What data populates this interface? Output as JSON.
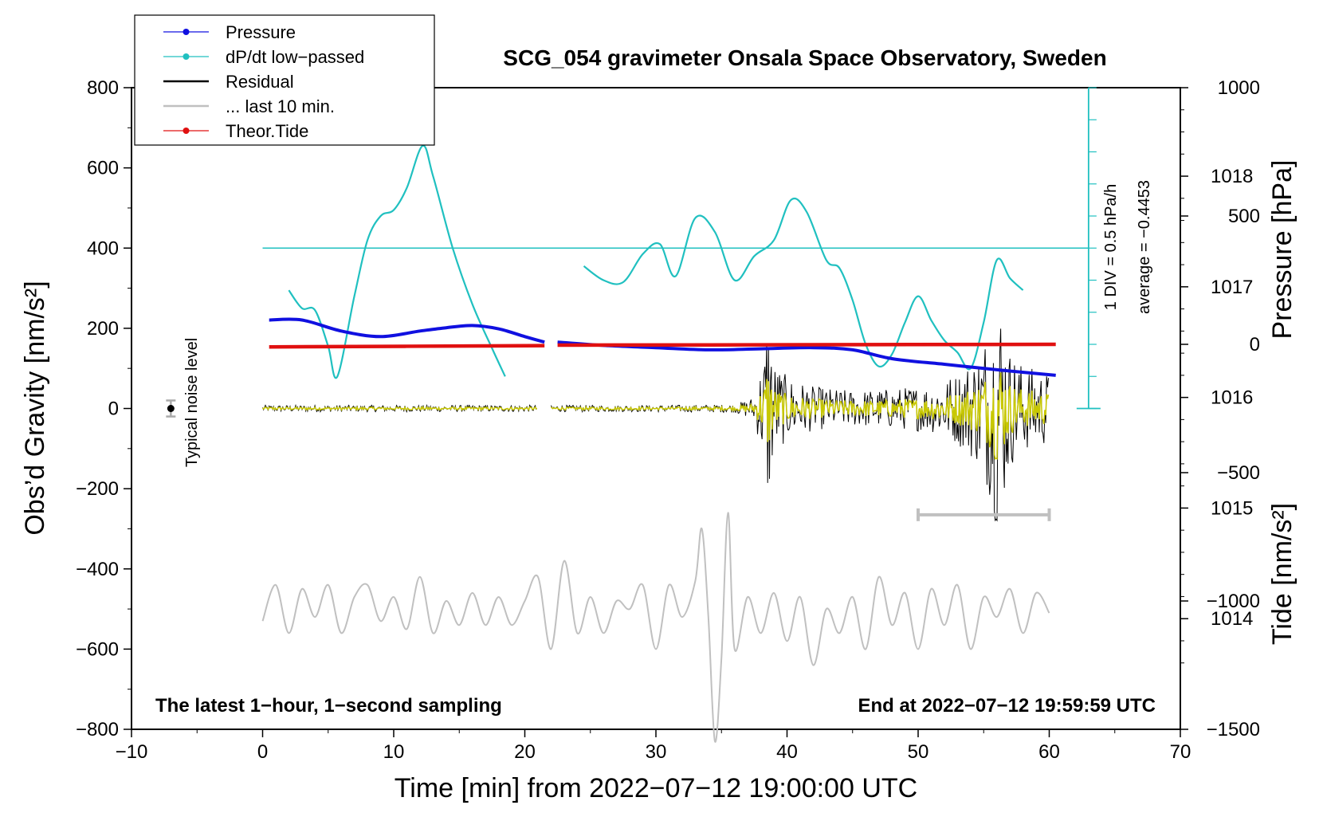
{
  "chart_data": {
    "type": "line",
    "title": "SCG_054 gravimeter Onsala Space Observatory, Sweden",
    "xlabel": "Time [min] from 2022−07−12 19:00:00 UTC",
    "ylabel_left": "Obs’d Gravity [nm/s²]",
    "ylabel_right_top": "Pressure [hPa]",
    "ylabel_right_bottom": "Tide [nm/s²]",
    "xlim": [
      -10,
      70
    ],
    "ylim_left": [
      -800,
      800
    ],
    "ylim_pressure": [
      1013,
      1018.8
    ],
    "ylim_tide": [
      -1500,
      1000
    ],
    "x_ticks": [
      "−10",
      "0",
      "10",
      "20",
      "30",
      "40",
      "50",
      "60",
      "70"
    ],
    "x_tick_values": [
      -10,
      0,
      10,
      20,
      30,
      40,
      50,
      60,
      70
    ],
    "y_ticks_left": [
      "800",
      "600",
      "400",
      "200",
      "0",
      "−200",
      "−400",
      "−600",
      "−800"
    ],
    "y_tick_values_left": [
      800,
      600,
      400,
      200,
      0,
      -200,
      -400,
      -600,
      -800
    ],
    "pressure_ticks": [
      "1018",
      "1017",
      "1016",
      "1015",
      "1014"
    ],
    "pressure_tick_values": [
      1018,
      1017,
      1016,
      1015,
      1014
    ],
    "tide_ticks": [
      "1000",
      "500",
      "0",
      "−500",
      "−1000",
      "−1500"
    ],
    "tide_tick_values": [
      1000,
      500,
      0,
      -500,
      -1000,
      -1500
    ],
    "legend": [
      {
        "label": "Pressure",
        "color": "#1010e0",
        "marker": true
      },
      {
        "label": "dP/dt low−passed",
        "color": "#20c0c0",
        "marker": true
      },
      {
        "label": "Residual",
        "color": "#000000",
        "marker": false
      },
      {
        "label": "... last 10 min.",
        "color": "#c0c0c0",
        "marker": false
      },
      {
        "label": "Theor.Tide",
        "color": "#e01010",
        "marker": true
      }
    ],
    "colors": {
      "pressure": "#1010e0",
      "dpdt": "#20c0c0",
      "residual": "#000000",
      "residual_filtered": "#c8c800",
      "last10": "#c0c0c0",
      "tide": "#e01010"
    },
    "noise_level": {
      "label": "Typical noise level",
      "x": -7,
      "y": 0,
      "error": 20
    },
    "dpdt_scale": {
      "label": "1 DIV = 0.5 hPa/h",
      "average_label": "average = −0.4453",
      "zero_line_gravity": 400
    },
    "last10_bar": {
      "x_start": 50,
      "x_end": 60,
      "y": -265
    },
    "corner_left": "The latest 1−hour, 1−second sampling",
    "corner_right": "End at 2022−07−12 19:59:59 UTC",
    "series": [
      {
        "name": "Pressure",
        "axis": "pressure",
        "segments": [
          {
            "x": [
              0.5,
              3,
              6,
              9,
              12,
              14,
              16,
              18,
              20,
              21.5
            ],
            "y": [
              1016.7,
              1016.7,
              1016.6,
              1016.55,
              1016.6,
              1016.63,
              1016.65,
              1016.62,
              1016.55,
              1016.5
            ]
          },
          {
            "x": [
              22.5,
              26,
              30,
              34,
              38,
              42,
              45,
              48,
              52,
              56,
              60.5
            ],
            "y": [
              1016.5,
              1016.47,
              1016.45,
              1016.43,
              1016.44,
              1016.45,
              1016.43,
              1016.35,
              1016.3,
              1016.25,
              1016.2
            ]
          }
        ]
      },
      {
        "name": "dP/dt low−passed",
        "axis": "left",
        "segments": [
          {
            "x": [
              2,
              3,
              4,
              5,
              5.7,
              7,
              8,
              9,
              10,
              11,
              12.2,
              13,
              14.5,
              16,
              17.5,
              18.5
            ],
            "y": [
              295,
              250,
              245,
              155,
              80,
              280,
              420,
              480,
              495,
              550,
              655,
              580,
              400,
              260,
              150,
              80
            ]
          },
          {
            "x": [
              24.5,
              26,
              27.5,
              29,
              30.3,
              31.5,
              33,
              34.5,
              36,
              37.5,
              39,
              40.3,
              41.5,
              43,
              44,
              45,
              46,
              47,
              48,
              49,
              50,
              51,
              52,
              53,
              54,
              55,
              56,
              57,
              58
            ],
            "y": [
              355,
              320,
              315,
              385,
              410,
              330,
              475,
              440,
              320,
              380,
              420,
              520,
              490,
              370,
              350,
              270,
              160,
              105,
              135,
              215,
              280,
              220,
              170,
              140,
              100,
              215,
              370,
              325,
              295
            ]
          }
        ]
      },
      {
        "name": "Residual",
        "axis": "left",
        "note": "approximate envelope amplitude (nm/s²) of the noisy trace",
        "segments": [
          {
            "x": [
              0,
              21
            ],
            "amplitude": [
              8,
              8
            ]
          },
          {
            "x": [
              22,
              30,
              36,
              37.5,
              38.3,
              38.5,
              39,
              40,
              42,
              45,
              48,
              51,
              53,
              54.5,
              55.8,
              56,
              57,
              58,
              60
            ],
            "amplitude": [
              8,
              8,
              10,
              30,
              150,
              270,
              120,
              80,
              55,
              45,
              50,
              60,
              90,
              140,
              250,
              340,
              150,
              110,
              90
            ]
          }
        ]
      },
      {
        "name": "... last 10 min.",
        "axis": "left",
        "x": [
          0,
          1,
          2,
          3,
          4,
          5,
          6,
          7,
          8,
          9,
          10,
          11,
          12,
          13,
          14,
          15,
          16,
          17,
          18,
          19,
          20,
          21,
          22,
          23,
          24,
          25,
          26,
          27,
          28,
          29,
          30,
          31,
          32,
          33,
          33.5,
          34,
          34.5,
          35,
          35.5,
          36,
          37,
          38,
          39,
          40,
          41,
          42,
          43,
          44,
          45,
          46,
          47,
          48,
          49,
          50,
          51,
          52,
          53,
          54,
          55,
          56,
          57,
          58,
          59,
          60
        ],
        "y": [
          -530,
          -440,
          -560,
          -450,
          -520,
          -440,
          -560,
          -470,
          -440,
          -530,
          -470,
          -550,
          -420,
          -560,
          -480,
          -540,
          -460,
          -540,
          -470,
          -540,
          -480,
          -420,
          -600,
          -380,
          -560,
          -470,
          -560,
          -480,
          -500,
          -440,
          -600,
          -440,
          -520,
          -430,
          -300,
          -520,
          -830,
          -620,
          -260,
          -600,
          -470,
          -560,
          -460,
          -580,
          -470,
          -640,
          -500,
          -560,
          -470,
          -600,
          -420,
          -540,
          -460,
          -600,
          -450,
          -540,
          -440,
          -600,
          -470,
          -520,
          -450,
          -560,
          -460,
          -510
        ]
      },
      {
        "name": "Theor.Tide",
        "axis": "tide",
        "segments": [
          {
            "x": [
              0.5,
              21.5
            ],
            "y": [
              -10,
              -5
            ]
          },
          {
            "x": [
              22.5,
              60.5
            ],
            "y": [
              -3,
              0
            ]
          }
        ]
      }
    ]
  }
}
